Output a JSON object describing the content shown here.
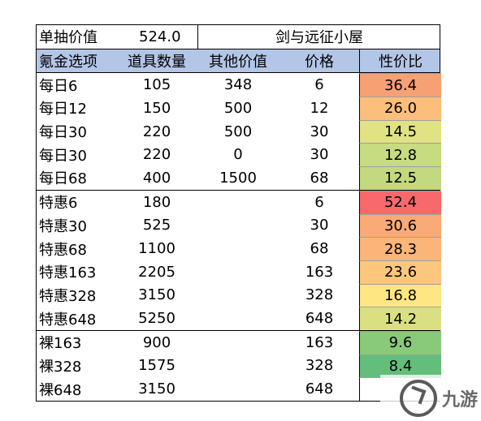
{
  "title": {
    "label": "单抽价值",
    "value": "524.0",
    "site": "剑与远征小屋"
  },
  "headers": [
    "氪金选项",
    "道具数量",
    "其他价值",
    "价格",
    "性价比"
  ],
  "groups": [
    {
      "rows": [
        {
          "name": "每日6",
          "qty": "105",
          "other": "348",
          "price": "6",
          "ratio": "36.4",
          "color": "#f7a073"
        },
        {
          "name": "每日12",
          "qty": "150",
          "other": "500",
          "price": "12",
          "ratio": "26.0",
          "color": "#fbbf7b"
        },
        {
          "name": "每日30",
          "qty": "220",
          "other": "500",
          "price": "30",
          "ratio": "14.5",
          "color": "#e0e283"
        },
        {
          "name": "每日30",
          "qty": "220",
          "other": "0",
          "price": "30",
          "ratio": "12.8",
          "color": "#c7db80"
        },
        {
          "name": "每日68",
          "qty": "400",
          "other": "1500",
          "price": "68",
          "ratio": "12.5",
          "color": "#c2d97f"
        }
      ]
    },
    {
      "rows": [
        {
          "name": "特惠6",
          "qty": "180",
          "other": "",
          "price": "6",
          "ratio": "52.4",
          "color": "#f8696b"
        },
        {
          "name": "特惠30",
          "qty": "525",
          "other": "",
          "price": "30",
          "ratio": "30.6",
          "color": "#faaa76"
        },
        {
          "name": "特惠68",
          "qty": "1100",
          "other": "",
          "price": "68",
          "ratio": "28.3",
          "color": "#fbb579"
        },
        {
          "name": "特惠163",
          "qty": "2205",
          "other": "",
          "price": "163",
          "ratio": "23.6",
          "color": "#fcc77d"
        },
        {
          "name": "特惠328",
          "qty": "3150",
          "other": "",
          "price": "328",
          "ratio": "16.8",
          "color": "#fee783"
        },
        {
          "name": "特惠648",
          "qty": "5250",
          "other": "",
          "price": "648",
          "ratio": "14.2",
          "color": "#dae081"
        }
      ]
    },
    {
      "rows": [
        {
          "name": "裸163",
          "qty": "900",
          "other": "",
          "price": "163",
          "ratio": "9.6",
          "color": "#89c97a"
        },
        {
          "name": "裸328",
          "qty": "1575",
          "other": "",
          "price": "328",
          "ratio": "8.4",
          "color": "#63be7b"
        },
        {
          "name": "裸648",
          "qty": "3150",
          "other": "",
          "price": "648",
          "ratio": "",
          "color": "#ffffff"
        }
      ]
    }
  ],
  "watermark": {
    "text": "九游",
    "icon": "jiuyou-logo-icon"
  }
}
